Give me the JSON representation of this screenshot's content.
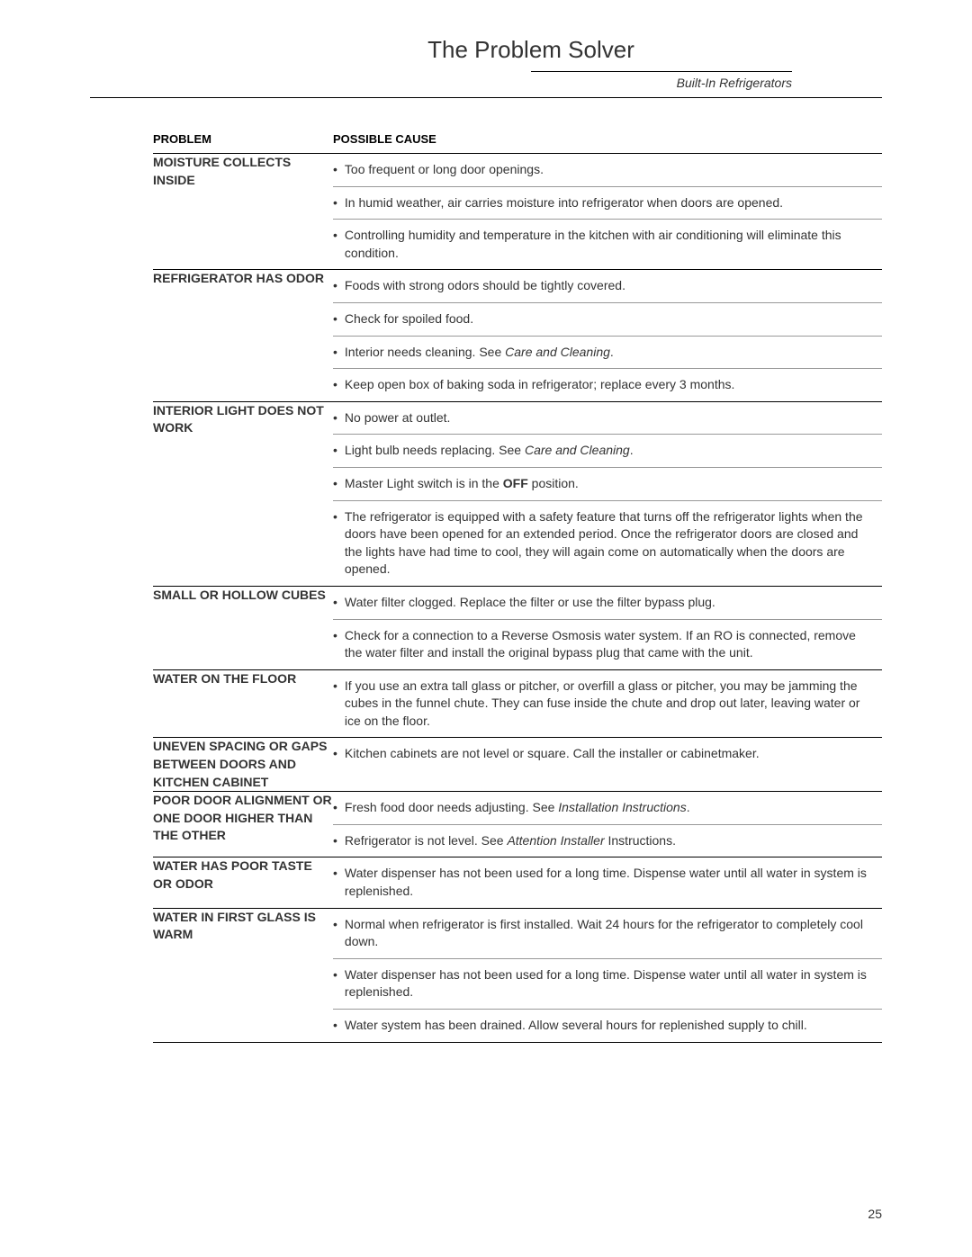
{
  "page": {
    "title": "The Problem Solver",
    "subtitle": "Built-In Refrigerators",
    "pageNumber": "25"
  },
  "table": {
    "headers": {
      "problem": "PROBLEM",
      "cause": "POSSIBLE CAUSE"
    },
    "rows": [
      {
        "problem": "MOISTURE COLLECTS INSIDE",
        "causes": [
          {
            "text": "Too frequent or long door openings."
          },
          {
            "text": "In humid weather, air carries moisture into refrigerator when doors are opened."
          },
          {
            "text": "Controlling humidity and temperature in the kitchen with air conditioning will eliminate this condition."
          }
        ]
      },
      {
        "problem": "REFRIGERATOR HAS ODOR",
        "causes": [
          {
            "text": "Foods with strong odors should be tightly covered."
          },
          {
            "text": "Check for spoiled food."
          },
          {
            "html": "Interior needs cleaning. See <span class=\"italic\">Care and Cleaning</span>."
          },
          {
            "text": "Keep open box of baking soda in refrigerator; replace every 3 months."
          }
        ]
      },
      {
        "problem": "INTERIOR LIGHT DOES NOT WORK",
        "causes": [
          {
            "text": "No power at outlet."
          },
          {
            "html": "Light bulb needs replacing. See <span class=\"italic\">Care and Cleaning</span>."
          },
          {
            "html": "Master Light switch is in the <span class=\"bold\">OFF</span> position."
          },
          {
            "text": "The refrigerator is equipped with a safety feature that turns off the refrigerator lights when the doors have been opened for an extended period. Once the refrigerator doors are closed and the lights have had time to cool, they will again come on automatically when the doors are opened."
          }
        ]
      },
      {
        "problem": "SMALL OR HOLLOW CUBES",
        "causes": [
          {
            "text": "Water filter clogged. Replace the filter or use the filter bypass plug."
          },
          {
            "text": "Check for a connection to a Reverse Osmosis water system. If an RO is connected, remove the water filter and install the original bypass plug that came with the unit."
          }
        ]
      },
      {
        "problem": "WATER ON THE FLOOR",
        "causes": [
          {
            "text": "If you use an extra tall glass or pitcher, or overfill a glass or pitcher, you may be jamming the cubes in the funnel chute. They can fuse inside the chute and drop out later, leaving water or ice on the floor."
          }
        ]
      },
      {
        "problem": "UNEVEN SPACING OR GAPS BETWEEN DOORS AND KITCHEN CABINET",
        "causes": [
          {
            "text": "Kitchen cabinets are not level or square. Call the installer or cabinetmaker."
          }
        ]
      },
      {
        "problem": "POOR DOOR ALIGNMENT OR ONE DOOR HIGHER THAN THE OTHER",
        "causes": [
          {
            "html": "Fresh food door needs adjusting. See <span class=\"italic\">Installation Instructions</span>."
          },
          {
            "html": "Refrigerator is not level. See <span class=\"italic\">Attention Installer</span> Instructions."
          }
        ]
      },
      {
        "problem": "WATER HAS POOR TASTE OR ODOR",
        "causes": [
          {
            "text": "Water dispenser has not been used for a long time. Dispense water until all water in system is replenished."
          }
        ]
      },
      {
        "problem": "WATER IN FIRST GLASS IS WARM",
        "causes": [
          {
            "text": "Normal when refrigerator is first installed. Wait 24 hours for the refrigerator to completely cool down."
          },
          {
            "text": "Water dispenser has not been used for a long time. Dispense water until all water in system is replenished."
          },
          {
            "text": "Water system has been drained. Allow several hours for replenished supply to chill."
          }
        ]
      }
    ]
  }
}
